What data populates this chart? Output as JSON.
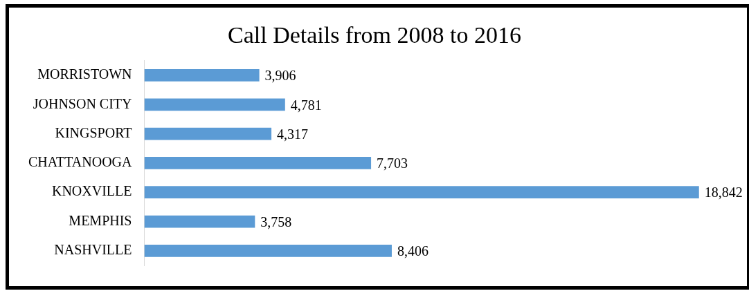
{
  "chart_data": {
    "type": "bar",
    "orientation": "horizontal",
    "title": "Call Details from 2008 to 2016",
    "categories": [
      "MORRISTOWN",
      "JOHNSON CITY",
      "KINGSPORT",
      "CHATTANOOGA",
      "KNOXVILLE",
      "MEMPHIS",
      "NASHVILLE"
    ],
    "values": [
      3906,
      4781,
      4317,
      7703,
      18842,
      3758,
      8406
    ],
    "value_labels": [
      "3,906",
      "4,781",
      "4,317",
      "7,703",
      "18,842",
      "3,758",
      "8,406"
    ],
    "color": "#5b9bd5",
    "legend": false
  }
}
